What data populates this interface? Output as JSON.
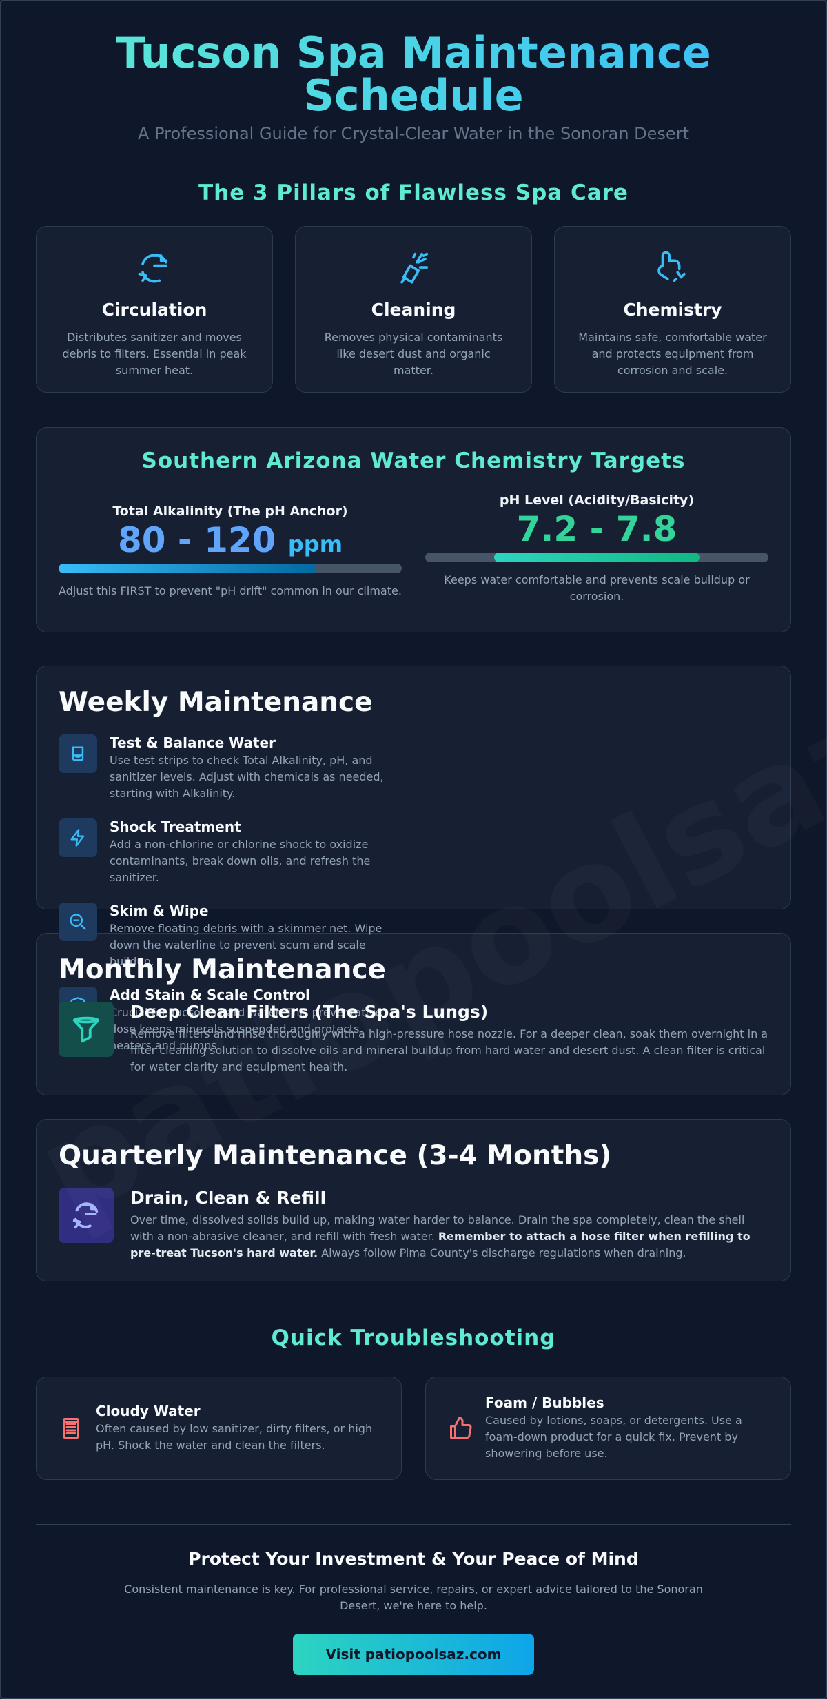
{
  "header": {
    "title": "Tucson Spa Maintenance Schedule",
    "subtitle": "A Professional Guide for Crystal-Clear Water in the Sonoran Desert"
  },
  "watermark": "patiopoolsaz.com",
  "pillars": {
    "heading": "The 3 Pillars of Flawless Spa Care",
    "items": [
      {
        "icon": "circulation-icon",
        "title": "Circulation",
        "text": "Distributes sanitizer and moves debris to filters. Essential in peak summer heat."
      },
      {
        "icon": "cleaning-icon",
        "title": "Cleaning",
        "text": "Removes physical contaminants like desert dust and organic matter."
      },
      {
        "icon": "chemistry-icon",
        "title": "Chemistry",
        "text": "Maintains safe, comfortable water and protects equipment from corrosion and scale."
      }
    ]
  },
  "chemistry": {
    "heading": "Southern Arizona Water Chemistry Targets",
    "alkalinity": {
      "label": "Total Alkalinity (The pH Anchor)",
      "range": "80 - 120",
      "unit": "ppm",
      "fill_fraction": 0.75,
      "note": "Adjust this FIRST to prevent \"pH drift\" common in our climate."
    },
    "ph": {
      "label": "pH Level (Acidity/Basicity)",
      "range": "7.2 - 7.8",
      "band_start_fraction": 0.2,
      "band_end_fraction": 0.8,
      "note": "Keeps water comfortable and prevents scale buildup or corrosion."
    }
  },
  "weekly": {
    "heading": "Weekly Maintenance",
    "tasks": [
      {
        "icon": "test-strip-icon",
        "title": "Test & Balance Water",
        "text": "Use test strips to check Total Alkalinity, pH, and sanitizer levels. Adjust with chemicals as needed, starting with Alkalinity."
      },
      {
        "icon": "lightning-icon",
        "title": "Shock Treatment",
        "text": "Add a non-chlorine or chlorine shock to oxidize contaminants, break down oils, and refresh the sanitizer."
      },
      {
        "icon": "search-minus-icon",
        "title": "Skim & Wipe",
        "text": "Remove floating debris with a skimmer net. Wipe down the waterline to prevent scum and scale buildup."
      },
      {
        "icon": "shield-check-icon",
        "title": "Add Stain & Scale Control",
        "text": "Crucial for Tucson's hard water. This preventative dose keeps minerals suspended and protects heaters and pumps."
      }
    ]
  },
  "monthly": {
    "heading": "Monthly Maintenance",
    "task": {
      "icon": "filter-icon",
      "title": "Deep Clean Filters (The Spa's Lungs)",
      "text": "Remove filters and rinse thoroughly with a high-pressure hose nozzle. For a deeper clean, soak them overnight in a filter cleaning solution to dissolve oils and mineral buildup from hard water and desert dust. A clean filter is critical for water clarity and equipment health."
    }
  },
  "quarterly": {
    "heading": "Quarterly Maintenance (3-4 Months)",
    "task": {
      "icon": "refill-icon",
      "title": "Drain, Clean & Refill",
      "text_before": "Over time, dissolved solids build up, making water harder to balance. Drain the spa completely, clean the shell with a non-abrasive cleaner, and refill with fresh water. ",
      "text_bold": "Remember to attach a hose filter when refilling to pre-treat Tucson's hard water.",
      "text_after": " Always follow Pima County's discharge regulations when draining."
    }
  },
  "troubleshooting": {
    "heading": "Quick Troubleshooting",
    "items": [
      {
        "icon": "cloudy-water-icon",
        "title": "Cloudy Water",
        "text": "Often caused by low sanitizer, dirty filters, or high pH. Shock the water and clean the filters."
      },
      {
        "icon": "thumbs-up-icon",
        "title": "Foam / Bubbles",
        "text": "Caused by lotions, soaps, or detergents. Use a foam-down product for a quick fix. Prevent by showering before use."
      }
    ]
  },
  "footer": {
    "heading": "Protect Your Investment & Your Peace of Mind",
    "text": "Consistent maintenance is key. For professional service, repairs, or expert advice tailored to the Sonoran Desert, we're here to help.",
    "cta_label": "Visit patiopoolsaz.com"
  },
  "colors": {
    "background": "#0f172a",
    "card": "#172033",
    "accent_teal": "#5eead4",
    "accent_blue": "#38bdf8",
    "accent_green": "#34d399",
    "trouble_red": "#f87171"
  }
}
